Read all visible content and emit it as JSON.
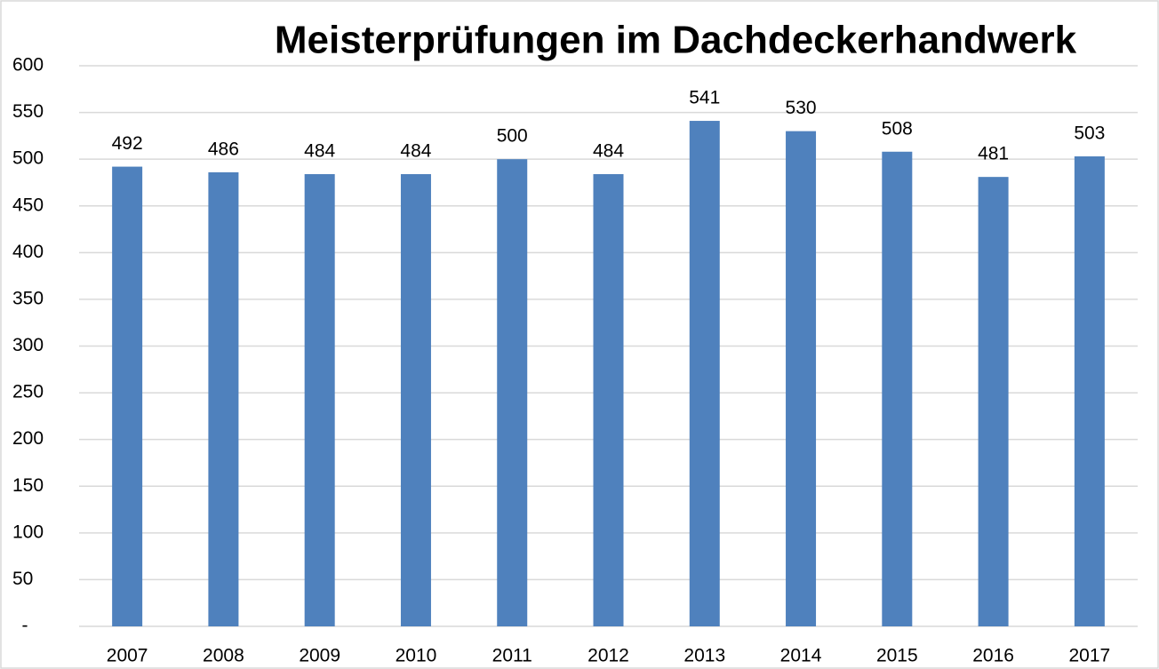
{
  "chart_data": {
    "type": "bar",
    "title": "Meisterprüfungen im Dachdeckerhandwerk",
    "categories": [
      "2007",
      "2008",
      "2009",
      "2010",
      "2011",
      "2012",
      "2013",
      "2014",
      "2015",
      "2016",
      "2017"
    ],
    "values": [
      492,
      486,
      484,
      484,
      500,
      484,
      541,
      530,
      508,
      481,
      503
    ],
    "color": "#4f81bd",
    "ylim": [
      0,
      600
    ],
    "yticks": [
      {
        "value": 0,
        "label": "-"
      },
      50,
      100,
      150,
      200,
      250,
      300,
      350,
      400,
      450,
      500,
      550,
      600
    ],
    "grid": true
  }
}
